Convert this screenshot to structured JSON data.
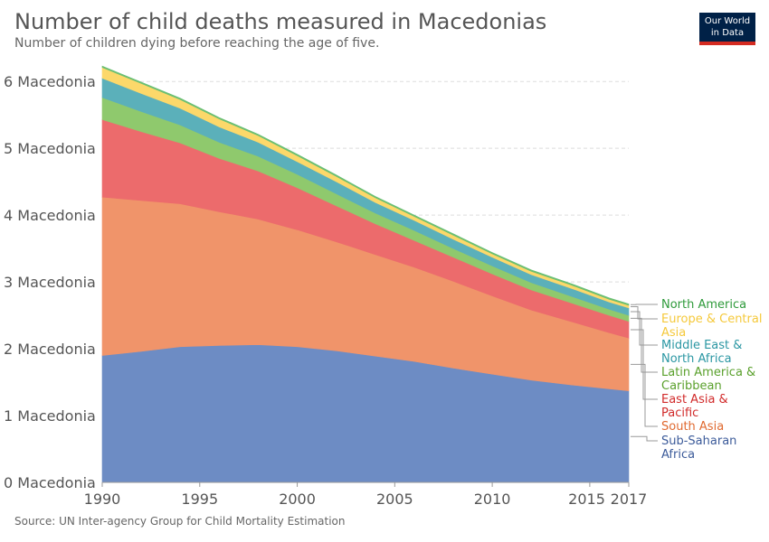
{
  "header": {
    "title": "Number of child deaths measured in Macedonias",
    "subtitle": "Number of children dying before reaching the age of five.",
    "logo_line1": "Our World",
    "logo_line2": "in Data"
  },
  "footer": {
    "source": "Source: UN Inter-agency Group for Child Mortality Estimation"
  },
  "chart_data": {
    "type": "area",
    "stacked": true,
    "title": "Number of child deaths measured in Macedonias",
    "subtitle": "Number of children dying before reaching the age of five.",
    "xlabel": "",
    "ylabel": "",
    "xlim": [
      1990,
      2017
    ],
    "ylim": [
      0,
      6.3
    ],
    "y_unit": "Macedonia",
    "y_ticks": [
      0,
      1,
      2,
      3,
      4,
      5,
      6
    ],
    "y_tick_labels": [
      "0 Macedonia",
      "1 Macedonia",
      "2 Macedonia",
      "3 Macedonia",
      "4 Macedonia",
      "5 Macedonia",
      "6 Macedonia"
    ],
    "x_ticks": [
      1990,
      1995,
      2000,
      2005,
      2010,
      2015,
      2017
    ],
    "x_tick_labels": [
      "1990",
      "1995",
      "2000",
      "2005",
      "2010",
      "2015",
      "2017"
    ],
    "grid": "horizontal dashed",
    "legend_position": "right, end of lines",
    "x": [
      1990,
      1992,
      1994,
      1996,
      1998,
      2000,
      2002,
      2004,
      2006,
      2008,
      2010,
      2012,
      2014,
      2016,
      2017
    ],
    "series": [
      {
        "name": "Sub-Saharan Africa",
        "color": "#6d8cc4",
        "label_color": "#3c5b9a",
        "values": [
          1.9,
          1.96,
          2.03,
          2.05,
          2.06,
          2.03,
          1.97,
          1.89,
          1.81,
          1.71,
          1.62,
          1.53,
          1.46,
          1.4,
          1.37
        ]
      },
      {
        "name": "South Asia",
        "color": "#f0946a",
        "label_color": "#e06a30",
        "values": [
          2.37,
          2.26,
          2.14,
          2.0,
          1.88,
          1.75,
          1.63,
          1.52,
          1.41,
          1.3,
          1.17,
          1.05,
          0.95,
          0.84,
          0.79
        ]
      },
      {
        "name": "East Asia & Pacific",
        "color": "#ec6b6c",
        "label_color": "#d12a2a",
        "values": [
          1.16,
          1.03,
          0.91,
          0.8,
          0.72,
          0.63,
          0.54,
          0.46,
          0.4,
          0.36,
          0.33,
          0.3,
          0.28,
          0.26,
          0.25
        ]
      },
      {
        "name": "Latin America & Caribbean",
        "color": "#8fc96d",
        "label_color": "#5aa02c",
        "values": [
          0.33,
          0.3,
          0.27,
          0.24,
          0.22,
          0.2,
          0.18,
          0.16,
          0.15,
          0.13,
          0.12,
          0.11,
          0.1,
          0.09,
          0.09
        ]
      },
      {
        "name": "Middle East & North Africa",
        "color": "#5bb0ba",
        "label_color": "#2b97a3",
        "values": [
          0.29,
          0.27,
          0.25,
          0.23,
          0.21,
          0.19,
          0.18,
          0.16,
          0.15,
          0.14,
          0.13,
          0.12,
          0.12,
          0.11,
          0.11
        ]
      },
      {
        "name": "Europe & Central Asia",
        "color": "#fcd86a",
        "label_color": "#f5c93b",
        "values": [
          0.16,
          0.15,
          0.13,
          0.12,
          0.1,
          0.09,
          0.08,
          0.07,
          0.06,
          0.06,
          0.05,
          0.05,
          0.05,
          0.04,
          0.04
        ]
      },
      {
        "name": "North America",
        "color": "#6bbf73",
        "label_color": "#2e9a3a",
        "values": [
          0.02,
          0.02,
          0.02,
          0.02,
          0.02,
          0.02,
          0.02,
          0.02,
          0.02,
          0.02,
          0.02,
          0.02,
          0.02,
          0.02,
          0.02
        ]
      }
    ]
  }
}
